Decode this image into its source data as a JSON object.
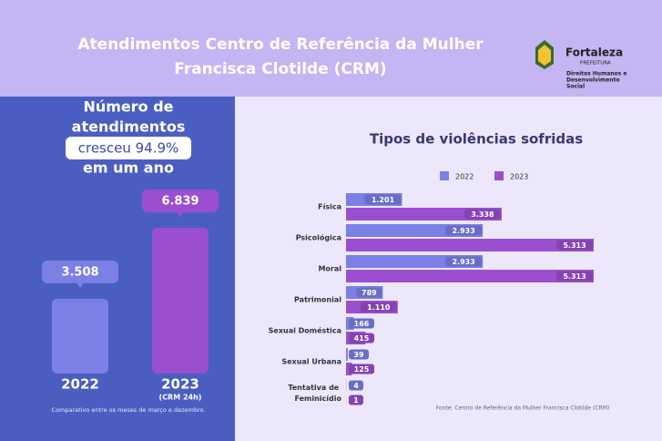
{
  "header": {
    "title_lines": [
      "Atendimentos Centro de Referência da Mulher",
      "Francisca Clotilde (CRM)"
    ],
    "logo": {
      "name": "Fortaleza",
      "subtitle": "PREFEITURA",
      "department_lines": [
        "Direitos Humanos e",
        "Desenvolvimento",
        "Social"
      ]
    }
  },
  "summary": {
    "headline_lines": [
      "Número de",
      "atendimentos"
    ],
    "highlight": "cresceu 94.9%",
    "headline_end": "em um ano",
    "footnote": "Comparativo entre os meses de março e dezembro."
  },
  "chart_data": [
    {
      "type": "column",
      "categories": [
        "2022",
        "2023"
      ],
      "category_notes": [
        null,
        "(CRM 24h)"
      ],
      "values": [
        3508,
        6839
      ],
      "value_labels": [
        "3.508",
        "6.839"
      ],
      "colors": [
        "#7b7fe6",
        "#9b4fd0"
      ]
    },
    {
      "type": "hbar",
      "title": "Tipos de violências sofridas",
      "categories": [
        "Física",
        "Psicológica",
        "Moral",
        "Patrimonial",
        "Sexual Doméstica",
        "Sexual Urbana",
        "Tentativa de Feminicídio"
      ],
      "series": [
        {
          "name": "2022",
          "color": "#7b7fe6",
          "values": [
            1201,
            2933,
            2933,
            789,
            166,
            39,
            4
          ],
          "value_labels": [
            "1.201",
            "2.933",
            "2.933",
            "789",
            "166",
            "39",
            "4"
          ]
        },
        {
          "name": "2023",
          "color": "#9b4fd0",
          "values": [
            3338,
            5313,
            5313,
            1110,
            415,
            125,
            1
          ],
          "value_labels": [
            "3.338",
            "5.313",
            "5.313",
            "1.110",
            "415",
            "125",
            "1"
          ]
        }
      ],
      "source": "Fonte: Centro de Referência da Mulher Francisca Clotilde (CRM)"
    }
  ]
}
